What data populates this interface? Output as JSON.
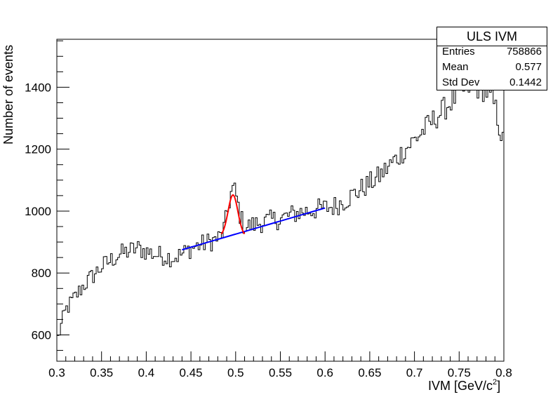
{
  "chart_data": {
    "type": "histogram",
    "xlabel": "IVM [GeV/c",
    "xlabel_sup": "2",
    "xlabel_close": "]",
    "ylabel": "Number of events",
    "xlim": [
      0.3,
      0.8
    ],
    "ylim": [
      515,
      1555
    ],
    "x_ticks": [
      "0.3",
      "0.35",
      "0.4",
      "0.45",
      "0.5",
      "0.55",
      "0.6",
      "0.65",
      "0.7",
      "0.75",
      "0.8"
    ],
    "y_ticks": [
      "600",
      "800",
      "1000",
      "1200",
      "1400"
    ],
    "grid": false,
    "bin_width": 0.002,
    "hist_color": "#000000",
    "anchors_x": [
      0.3,
      0.31,
      0.32,
      0.33,
      0.34,
      0.35,
      0.36,
      0.37,
      0.38,
      0.39,
      0.4,
      0.41,
      0.42,
      0.43,
      0.44,
      0.45,
      0.46,
      0.47,
      0.48,
      0.49,
      0.5,
      0.51,
      0.52,
      0.53,
      0.54,
      0.55,
      0.56,
      0.57,
      0.58,
      0.59,
      0.6,
      0.61,
      0.62,
      0.63,
      0.64,
      0.65,
      0.66,
      0.67,
      0.68,
      0.69,
      0.7,
      0.71,
      0.72,
      0.73,
      0.74,
      0.75,
      0.76,
      0.77,
      0.78,
      0.79,
      0.8
    ],
    "anchors_y": [
      580,
      680,
      720,
      760,
      790,
      820,
      840,
      860,
      870,
      880,
      870,
      860,
      855,
      850,
      860,
      880,
      890,
      900,
      910,
      920,
      935,
      945,
      955,
      965,
      970,
      975,
      985,
      995,
      1000,
      1005,
      1010,
      1015,
      1030,
      1050,
      1070,
      1090,
      1110,
      1140,
      1170,
      1200,
      1230,
      1260,
      1290,
      1320,
      1350,
      1380,
      1400,
      1400,
      1390,
      1340,
      1210
    ],
    "peak": {
      "center": 0.497,
      "sigma": 0.0055,
      "amplitude": 140
    },
    "background_fit": {
      "color": "#0000ff",
      "x_range": [
        0.44,
        0.6
      ],
      "y_start": 875,
      "y_end": 1010
    },
    "signal_fit": {
      "color": "#ff0000",
      "x_range": [
        0.484,
        0.51
      ],
      "baseline": 918,
      "peak_y": 1052,
      "center": 0.497,
      "sigma": 0.0055
    }
  },
  "stats": {
    "title": "ULS IVM",
    "rows": [
      {
        "key": "Entries",
        "value": "758866"
      },
      {
        "key": "Mean",
        "value": "0.577"
      },
      {
        "key": "Std Dev",
        "value": "0.1442"
      }
    ]
  }
}
